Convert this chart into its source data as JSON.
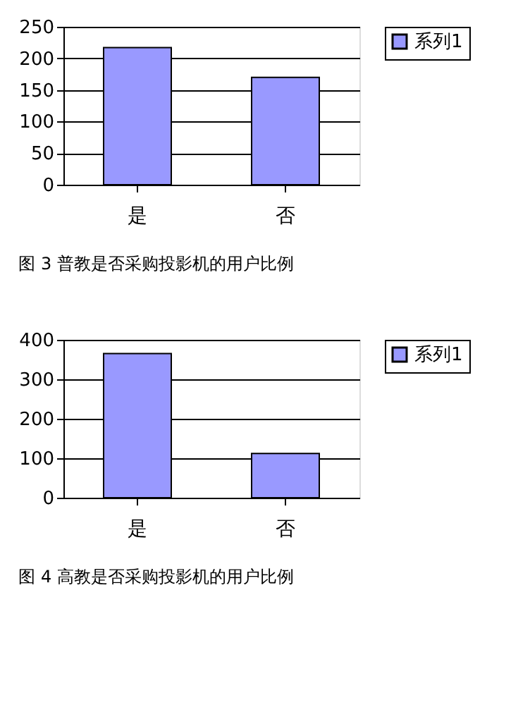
{
  "chart_data": [
    {
      "type": "bar",
      "categories": [
        "是",
        "否"
      ],
      "series": [
        {
          "name": "系列1",
          "color": "#9999ff",
          "values": [
            217,
            170
          ]
        }
      ],
      "ylim": [
        0,
        250
      ],
      "yticks": [
        0,
        50,
        100,
        150,
        200,
        250
      ],
      "grid": "y",
      "legend": "right",
      "annotations": [
        "图 3 普教是否采购投影机的用户比例"
      ]
    },
    {
      "type": "bar",
      "categories": [
        "是",
        "否"
      ],
      "series": [
        {
          "name": "系列1",
          "color": "#9999ff",
          "values": [
            365,
            112
          ]
        }
      ],
      "ylim": [
        0,
        400
      ],
      "yticks": [
        0,
        100,
        200,
        300,
        400
      ],
      "grid": "y",
      "legend": "right",
      "annotations": [
        "图 4 高教是否采购投影机的用户比例"
      ]
    }
  ]
}
